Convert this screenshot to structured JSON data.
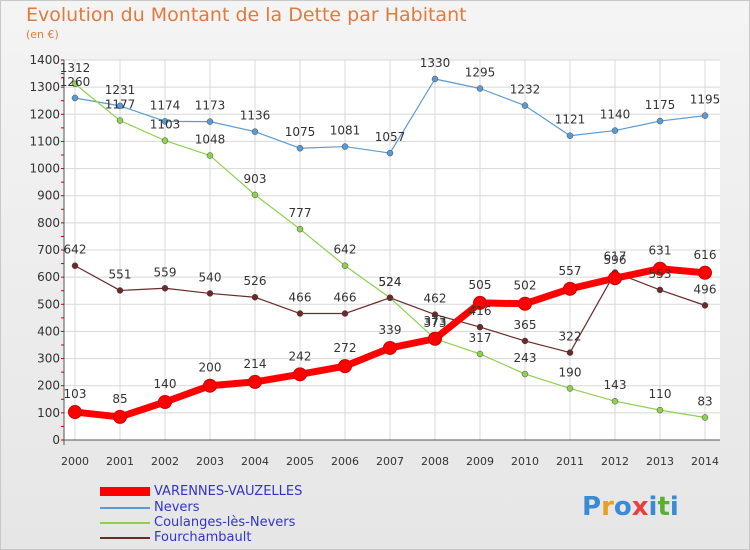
{
  "header": {
    "title": "Evolution du Montant de la Dette par Habitant",
    "unit": "(en €)"
  },
  "logo": {
    "letters": [
      "P",
      "r",
      "o",
      "x",
      "i",
      "t",
      "i"
    ],
    "colors": [
      "#3a8ad6",
      "#e8a020",
      "#3a8ad6",
      "#e84040",
      "#3a8ad6",
      "#5ab030",
      "#3a8ad6"
    ]
  },
  "chart_data": {
    "type": "line",
    "title": "Evolution du Montant de la Dette par Habitant",
    "ylabel": "(en €)",
    "xlabel": "",
    "x": [
      "2000",
      "2001",
      "2002",
      "2003",
      "2004",
      "2005",
      "2006",
      "2007",
      "2008",
      "2009",
      "2010",
      "2011",
      "2012",
      "2013",
      "2014"
    ],
    "ylim": [
      0,
      1400
    ],
    "yticks": [
      "0",
      "100",
      "200",
      "300",
      "400",
      "500",
      "600",
      "700",
      "800",
      "900",
      "1000",
      "1100",
      "1200",
      "1300",
      "1400"
    ],
    "grid": true,
    "legend_position": "bottom-left",
    "series": [
      {
        "name": "Nevers",
        "color": "#5b9bd5",
        "values": [
          1260,
          1231,
          1174,
          1173,
          1136,
          1075,
          1081,
          1057,
          1330,
          1295,
          1232,
          1121,
          1140,
          1175,
          1195
        ],
        "labels": [
          "1260",
          "1231",
          "1174",
          "1173",
          "1136",
          "1075",
          "1081",
          "1057",
          "1330",
          "1295",
          "1232",
          "1121",
          "1140",
          "1175",
          "1195"
        ]
      },
      {
        "name": "Coulanges-lès-Nevers",
        "color": "#8fd14f",
        "values": [
          1312,
          1177,
          1103,
          1048,
          903,
          777,
          642,
          524,
          373,
          317,
          243,
          190,
          143,
          110,
          83
        ],
        "labels": [
          "1312",
          "1177",
          "1103",
          "1048",
          "903",
          "777",
          "642",
          "524",
          "373",
          "317",
          "243",
          "190",
          "143",
          "110",
          "83"
        ]
      },
      {
        "name": "Fourchambault",
        "color": "#6b2a2a",
        "values": [
          642,
          551,
          559,
          540,
          526,
          466,
          466,
          524,
          462,
          416,
          365,
          322,
          617,
          553,
          496
        ],
        "labels": [
          "642",
          "551",
          "559",
          "540",
          "526",
          "466",
          "466",
          "524",
          "462",
          "416",
          "365",
          "322",
          "617",
          "553",
          "496"
        ]
      },
      {
        "name": "VARENNES-VAUZELLES",
        "color": "#ff0000",
        "values": [
          103,
          85,
          140,
          200,
          214,
          242,
          272,
          339,
          373,
          505,
          502,
          557,
          596,
          631,
          616
        ],
        "labels": [
          "103",
          "85",
          "140",
          "200",
          "214",
          "242",
          "272",
          "339",
          "373",
          "505",
          "502",
          "557",
          "596",
          "631",
          "616"
        ]
      }
    ]
  }
}
